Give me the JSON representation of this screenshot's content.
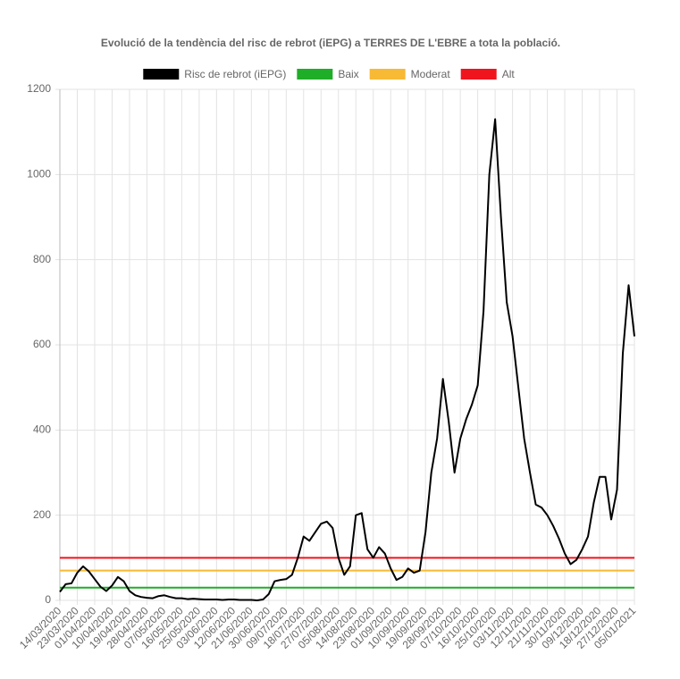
{
  "chart_data": {
    "type": "line",
    "title": "Evolució de la tendència del risc de rebrot (iEPG) a TERRES DE L'EBRE a tota la població.",
    "categories": [
      "14/03/2020",
      null,
      null,
      "23/03/2020",
      null,
      null,
      "01/04/2020",
      null,
      null,
      "10/04/2020",
      null,
      null,
      "19/04/2020",
      null,
      null,
      "28/04/2020",
      null,
      null,
      "07/05/2020",
      null,
      null,
      "16/05/2020",
      null,
      null,
      "25/05/2020",
      null,
      null,
      "03/06/2020",
      null,
      null,
      "12/06/2020",
      null,
      null,
      "21/06/2020",
      null,
      null,
      "30/06/2020",
      null,
      null,
      "09/07/2020",
      null,
      null,
      "18/07/2020",
      null,
      null,
      "27/07/2020",
      null,
      null,
      "05/08/2020",
      null,
      null,
      "14/08/2020",
      null,
      null,
      "23/08/2020",
      null,
      null,
      "01/09/2020",
      null,
      null,
      "10/09/2020",
      null,
      null,
      "19/09/2020",
      null,
      null,
      "28/09/2020",
      null,
      null,
      "07/10/2020",
      null,
      null,
      "16/10/2020",
      null,
      null,
      "25/10/2020",
      null,
      null,
      "03/11/2020",
      null,
      null,
      "12/11/2020",
      null,
      null,
      "21/11/2020",
      null,
      null,
      "30/11/2020",
      null,
      null,
      "09/12/2020",
      null,
      null,
      "18/12/2020",
      null,
      null,
      "27/12/2020",
      null,
      null,
      "05/01/2021"
    ],
    "series": [
      {
        "name": "Risc de rebrot (iEPG)",
        "color": "#000000",
        "values": [
          20,
          38,
          40,
          65,
          80,
          68,
          50,
          32,
          22,
          35,
          55,
          45,
          22,
          12,
          8,
          6,
          5,
          10,
          12,
          8,
          5,
          5,
          3,
          4,
          3,
          2,
          2,
          2,
          1,
          2,
          2,
          1,
          1,
          1,
          0,
          2,
          15,
          45,
          48,
          50,
          60,
          100,
          150,
          140,
          160,
          180,
          185,
          170,
          100,
          60,
          80,
          200,
          205,
          120,
          100,
          125,
          110,
          75,
          48,
          55,
          75,
          65,
          70,
          160,
          300,
          380,
          520,
          420,
          300,
          380,
          425,
          460,
          505,
          680,
          1000,
          1130,
          900,
          700,
          620,
          500,
          380,
          300,
          225,
          218,
          200,
          175,
          145,
          110,
          85,
          95,
          120,
          150,
          230,
          290,
          290,
          190,
          260,
          580,
          740,
          620
        ]
      }
    ],
    "reference_lines": [
      {
        "name": "Baix",
        "color": "#1fae27",
        "value": 30
      },
      {
        "name": "Moderat",
        "color": "#f8b935",
        "value": 70
      },
      {
        "name": "Alt",
        "color": "#f0141e",
        "value": 100
      }
    ],
    "ylim": [
      0,
      1200
    ],
    "yticks": [
      0,
      200,
      400,
      600,
      800,
      1000,
      1200
    ],
    "grid": true
  }
}
